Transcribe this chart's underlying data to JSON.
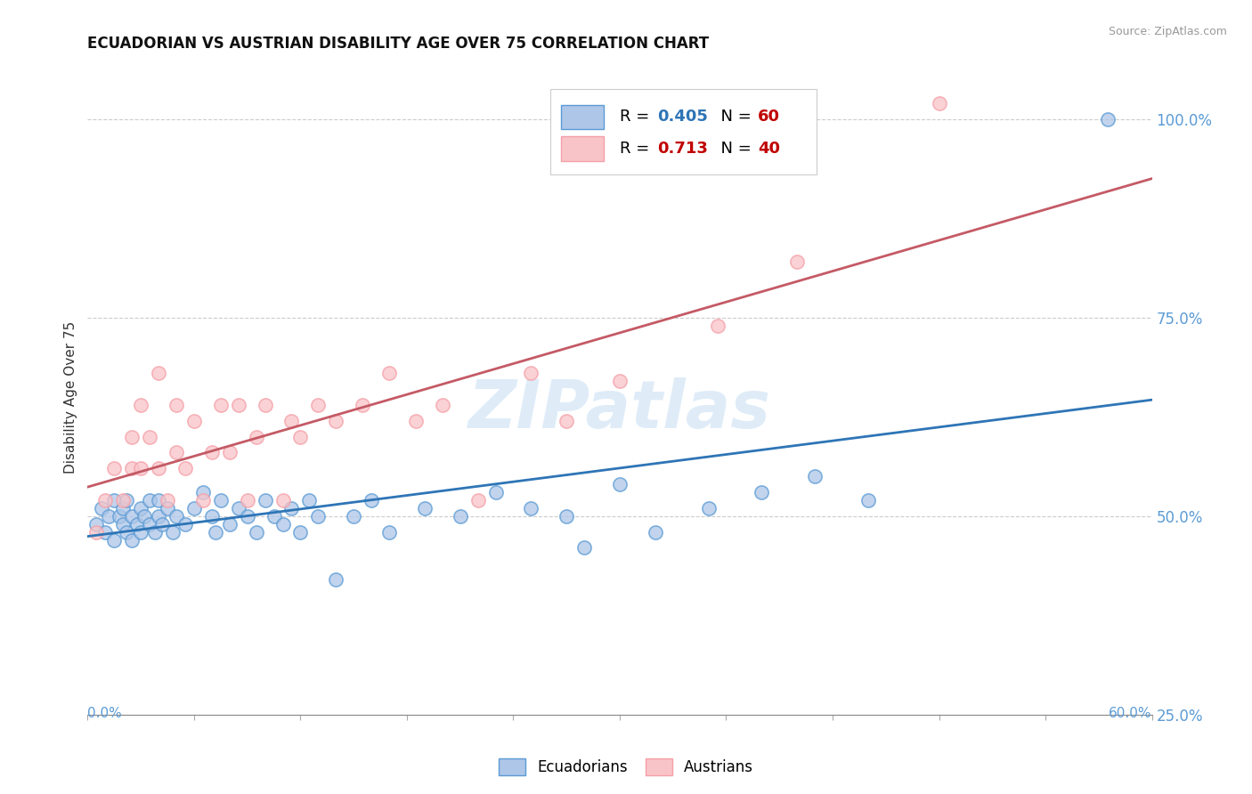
{
  "title": "ECUADORIAN VS AUSTRIAN DISABILITY AGE OVER 75 CORRELATION CHART",
  "source": "Source: ZipAtlas.com",
  "ylabel": "Disability Age Over 75",
  "xmin": 0.0,
  "xmax": 0.6,
  "ymin": 0.3,
  "ymax": 1.05,
  "yticks": [
    0.25,
    0.5,
    0.75,
    1.0
  ],
  "ytick_labels": [
    "25.0%",
    "50.0%",
    "75.0%",
    "100.0%"
  ],
  "xtick_positions": [
    0.0,
    0.06,
    0.12,
    0.18,
    0.24,
    0.3,
    0.36,
    0.42,
    0.48,
    0.54,
    0.6
  ],
  "watermark": "ZIPatlas",
  "ecu_color": "#5b9bd5",
  "ecu_face": "#aec6e8",
  "aus_color": "#f4a0a8",
  "aus_face": "#f9c4c8",
  "trend_ecu_color": "#2e75b6",
  "trend_aus_color": "#c45a65",
  "ecuadorians_x": [
    0.005,
    0.008,
    0.01,
    0.012,
    0.015,
    0.015,
    0.018,
    0.02,
    0.02,
    0.022,
    0.022,
    0.025,
    0.025,
    0.028,
    0.03,
    0.03,
    0.032,
    0.035,
    0.035,
    0.038,
    0.04,
    0.04,
    0.042,
    0.045,
    0.048,
    0.05,
    0.055,
    0.06,
    0.065,
    0.07,
    0.072,
    0.075,
    0.08,
    0.085,
    0.09,
    0.095,
    0.1,
    0.105,
    0.11,
    0.115,
    0.12,
    0.125,
    0.13,
    0.14,
    0.15,
    0.16,
    0.17,
    0.19,
    0.21,
    0.23,
    0.25,
    0.27,
    0.28,
    0.3,
    0.32,
    0.35,
    0.38,
    0.41,
    0.44,
    0.575
  ],
  "ecuadorians_y": [
    0.49,
    0.51,
    0.48,
    0.5,
    0.47,
    0.52,
    0.5,
    0.49,
    0.51,
    0.48,
    0.52,
    0.47,
    0.5,
    0.49,
    0.48,
    0.51,
    0.5,
    0.49,
    0.52,
    0.48,
    0.5,
    0.52,
    0.49,
    0.51,
    0.48,
    0.5,
    0.49,
    0.51,
    0.53,
    0.5,
    0.48,
    0.52,
    0.49,
    0.51,
    0.5,
    0.48,
    0.52,
    0.5,
    0.49,
    0.51,
    0.48,
    0.52,
    0.5,
    0.42,
    0.5,
    0.52,
    0.48,
    0.51,
    0.5,
    0.53,
    0.51,
    0.5,
    0.46,
    0.54,
    0.48,
    0.51,
    0.53,
    0.55,
    0.52,
    1.0
  ],
  "austrians_x": [
    0.005,
    0.01,
    0.015,
    0.02,
    0.025,
    0.025,
    0.03,
    0.03,
    0.035,
    0.04,
    0.04,
    0.045,
    0.05,
    0.05,
    0.055,
    0.06,
    0.065,
    0.07,
    0.075,
    0.08,
    0.085,
    0.09,
    0.095,
    0.1,
    0.11,
    0.115,
    0.12,
    0.13,
    0.14,
    0.155,
    0.17,
    0.185,
    0.2,
    0.22,
    0.25,
    0.27,
    0.3,
    0.355,
    0.4,
    0.48
  ],
  "austrians_y": [
    0.48,
    0.52,
    0.56,
    0.52,
    0.56,
    0.6,
    0.56,
    0.64,
    0.6,
    0.56,
    0.68,
    0.52,
    0.58,
    0.64,
    0.56,
    0.62,
    0.52,
    0.58,
    0.64,
    0.58,
    0.64,
    0.52,
    0.6,
    0.64,
    0.52,
    0.62,
    0.6,
    0.64,
    0.62,
    0.64,
    0.68,
    0.62,
    0.64,
    0.52,
    0.68,
    0.62,
    0.67,
    0.74,
    0.82,
    1.02
  ]
}
